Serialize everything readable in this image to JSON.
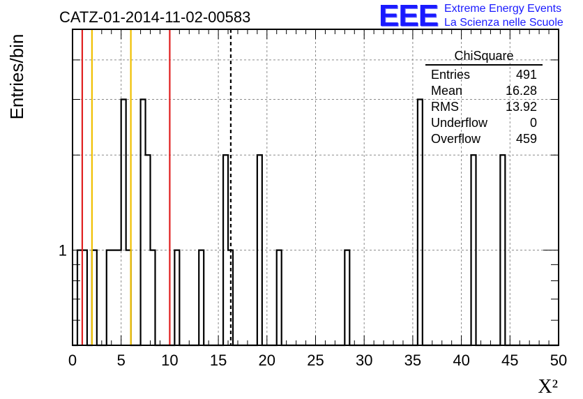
{
  "title": "CATZ-01-2014-11-02-00583",
  "logo": {
    "mark": "EEE",
    "line1": "Extreme Energy Events",
    "line2": "La Scienza nelle Scuole",
    "color": "#1a1aff"
  },
  "stats": {
    "title": "ChiSquare",
    "rows": [
      {
        "label": "Entries",
        "value": "491"
      },
      {
        "label": "Mean",
        "value": "16.28"
      },
      {
        "label": "RMS",
        "value": "13.92"
      },
      {
        "label": "Underflow",
        "value": "0"
      },
      {
        "label": "Overflow",
        "value": "459"
      }
    ]
  },
  "chart_data": {
    "type": "histogram",
    "title": "CATZ-01-2014-11-02-00583",
    "xlabel": "X²",
    "ylabel": "Entries/bin",
    "xlim": [
      0,
      50
    ],
    "yscale": "log",
    "ylim": [
      0.5,
      5
    ],
    "grid": true,
    "x_ticks": [
      "0",
      "5",
      "10",
      "15",
      "20",
      "25",
      "30",
      "35",
      "40",
      "45",
      "50"
    ],
    "y_tick_labels": [
      "1"
    ],
    "bin_width": 0.5,
    "bins": [
      {
        "x0": 0.5,
        "count": 1
      },
      {
        "x0": 1.0,
        "count": 1
      },
      {
        "x0": 2.0,
        "count": 1
      },
      {
        "x0": 3.5,
        "count": 1
      },
      {
        "x0": 4.0,
        "count": 1
      },
      {
        "x0": 4.5,
        "count": 1
      },
      {
        "x0": 5.0,
        "count": 3
      },
      {
        "x0": 5.5,
        "count": 1
      },
      {
        "x0": 7.0,
        "count": 3
      },
      {
        "x0": 7.5,
        "count": 2
      },
      {
        "x0": 8.0,
        "count": 1
      },
      {
        "x0": 10.5,
        "count": 1
      },
      {
        "x0": 13.0,
        "count": 1
      },
      {
        "x0": 15.5,
        "count": 2
      },
      {
        "x0": 16.0,
        "count": 1
      },
      {
        "x0": 19.0,
        "count": 2
      },
      {
        "x0": 21.0,
        "count": 1
      },
      {
        "x0": 28.0,
        "count": 1
      },
      {
        "x0": 35.5,
        "count": 3
      },
      {
        "x0": 41.0,
        "count": 2
      },
      {
        "x0": 44.0,
        "count": 2
      }
    ],
    "vertical_lines": [
      {
        "x": 1.0,
        "color": "#e02020",
        "style": "solid"
      },
      {
        "x": 2.0,
        "color": "#f0c000",
        "style": "solid"
      },
      {
        "x": 6.0,
        "color": "#f0c000",
        "style": "solid"
      },
      {
        "x": 10.0,
        "color": "#e02020",
        "style": "solid"
      },
      {
        "x": 16.28,
        "color": "#000000",
        "style": "dashed"
      }
    ]
  }
}
